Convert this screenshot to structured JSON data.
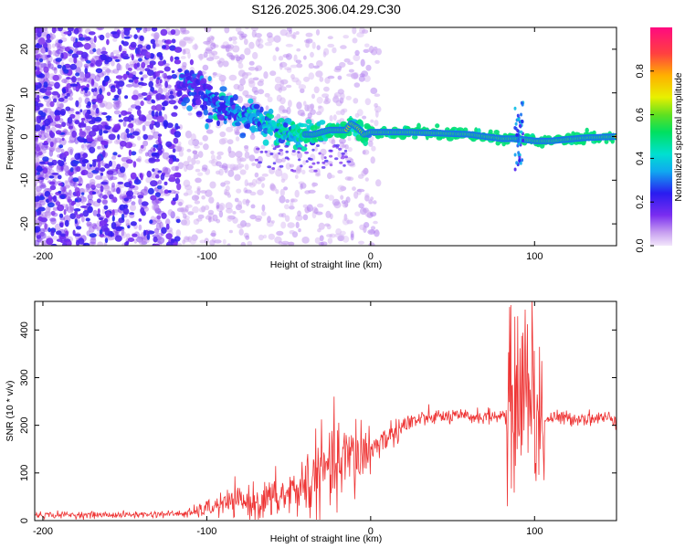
{
  "title": "S126.2025.306.04.29.C30",
  "chart_data": [
    {
      "type": "heatmap",
      "xlabel": "Height of straight line (km)",
      "ylabel": "Frequency (Hz)",
      "xlim": [
        -205,
        150
      ],
      "ylim": [
        -25,
        25
      ],
      "xticks": [
        -200,
        -100,
        0,
        100
      ],
      "yticks": [
        -20,
        -10,
        0,
        10,
        20
      ],
      "colorbar": {
        "label": "Normalized spectral amplitude",
        "range": [
          0.0,
          1.0
        ],
        "ticks": [
          0.0,
          0.2,
          0.4,
          0.6,
          0.8
        ]
      },
      "ridge": {
        "x": [
          -115,
          -100,
          -85,
          -70,
          -55,
          -45,
          -35,
          -25,
          -15,
          -12,
          -8,
          -4,
          0,
          20,
          40,
          60,
          70,
          80,
          90,
          100,
          110,
          130,
          150
        ],
        "frequency": [
          12,
          9,
          6,
          3.5,
          1.5,
          0.5,
          0.5,
          1.5,
          1.5,
          3,
          2,
          0.5,
          1,
          1,
          0.8,
          0.5,
          0,
          -0.5,
          -0.5,
          -1,
          -1,
          -0.3,
          0
        ]
      }
    },
    {
      "type": "line",
      "xlabel": "Height of straight line (km)",
      "ylabel": "SNR (10 * v/v)",
      "xlim": [
        -205,
        150
      ],
      "ylim": [
        0,
        460
      ],
      "xticks": [
        -200,
        -100,
        0,
        100
      ],
      "yticks": [
        0,
        100,
        200,
        300,
        400
      ],
      "series": [
        {
          "name": "SNR",
          "color": "#ee3333",
          "x": [
            -205,
            -150,
            -110,
            -100,
            -90,
            -80,
            -70,
            -60,
            -50,
            -40,
            -30,
            -20,
            -10,
            0,
            10,
            20,
            30,
            40,
            50,
            60,
            70,
            80,
            85,
            90,
            95,
            100,
            105,
            110,
            120,
            130,
            150
          ],
          "y": [
            12,
            12,
            15,
            25,
            35,
            40,
            38,
            45,
            55,
            75,
            100,
            115,
            135,
            150,
            175,
            200,
            212,
            218,
            218,
            218,
            218,
            220,
            220,
            270,
            300,
            230,
            210,
            215,
            215,
            215,
            215
          ]
        }
      ]
    }
  ]
}
